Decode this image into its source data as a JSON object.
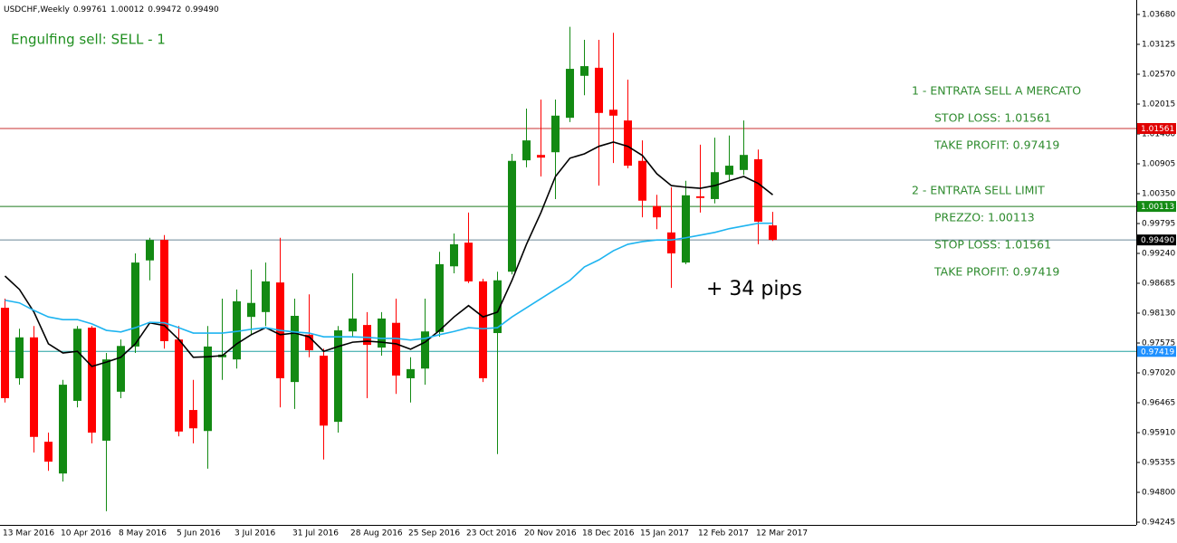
{
  "header": {
    "symbol": "USDCHF,Weekly",
    "ohlc": [
      "0.99761",
      "1.00012",
      "0.99472",
      "0.99490"
    ]
  },
  "annotations": {
    "signal": "Engulfing sell: SELL - 1",
    "lines": [
      "1 - ENTRATA SELL A MERCATO",
      "STOP LOSS: 1.01561",
      "TAKE PROFIT: 0.97419",
      "2 - ENTRATA SELL LIMIT",
      "PREZZO: 1.00113",
      "STOP LOSS: 1.01561",
      "TAKE PROFIT: 0.97419"
    ],
    "result": "+ 34 pips"
  },
  "chart_data": {
    "type": "candlestick",
    "categories": [
      "13 Mar 2016",
      null,
      null,
      null,
      "10 Apr 2016",
      null,
      null,
      null,
      "8 May 2016",
      null,
      null,
      null,
      "5 Jun 2016",
      null,
      null,
      null,
      "3 Jul 2016",
      null,
      null,
      null,
      "31 Jul 2016",
      null,
      null,
      null,
      "28 Aug 2016",
      null,
      null,
      null,
      "25 Sep 2016",
      null,
      null,
      null,
      "23 Oct 2016",
      null,
      null,
      null,
      "20 Nov 2016",
      null,
      null,
      null,
      "18 Dec 2016",
      null,
      null,
      null,
      "15 Jan 2017",
      null,
      null,
      null,
      "12 Feb 2017",
      null,
      null,
      null,
      "12 Mar 2017",
      null
    ],
    "open": [
      0.9823,
      0.9692,
      0.9768,
      0.9574,
      0.9515,
      0.965,
      0.9786,
      0.9576,
      0.9667,
      0.9751,
      0.9911,
      0.9949,
      0.9764,
      0.9633,
      0.9594,
      0.9731,
      0.9727,
      0.9806,
      0.9815,
      0.987,
      0.9685,
      0.9773,
      0.9734,
      0.9611,
      0.9779,
      0.9791,
      0.9749,
      0.9795,
      0.9692,
      0.971,
      0.9778,
      0.99,
      0.9944,
      0.9872,
      0.9776,
      0.989,
      1.0097,
      1.0107,
      1.0112,
      1.0176,
      1.0254,
      1.0269,
      1.0191,
      1.0171,
      1.0096,
      1.0012,
      0.9963,
      0.9907,
      1.003,
      1.0025,
      1.007,
      1.0079,
      1.0099,
      0.99761
    ],
    "high": [
      0.984,
      0.9784,
      0.9789,
      0.9591,
      0.9689,
      0.9789,
      0.9789,
      0.9739,
      0.9764,
      0.9924,
      0.9953,
      0.9958,
      0.9789,
      0.9689,
      0.9789,
      0.984,
      0.9857,
      0.9894,
      0.9907,
      0.9953,
      0.984,
      0.9848,
      0.9747,
      0.9789,
      0.9887,
      0.9815,
      0.9815,
      0.984,
      0.9731,
      0.984,
      0.9927,
      0.9961,
      1.0,
      0.9877,
      0.989,
      1.0109,
      1.0193,
      1.021,
      1.021,
      1.0345,
      1.0321,
      1.0321,
      1.0334,
      1.0247,
      1.0134,
      1.0033,
      1.0047,
      1.0059,
      1.0126,
      1.0139,
      1.0143,
      1.0171,
      1.0117,
      1.00012
    ],
    "low": [
      0.9647,
      0.968,
      0.9554,
      0.952,
      0.95,
      0.9638,
      0.9571,
      0.9445,
      0.9655,
      0.9739,
      0.9874,
      0.9747,
      0.9584,
      0.9571,
      0.9524,
      0.9689,
      0.971,
      0.9773,
      0.9789,
      0.9638,
      0.9635,
      0.9731,
      0.9541,
      0.9591,
      0.9769,
      0.9655,
      0.9734,
      0.9663,
      0.9647,
      0.968,
      0.9769,
      0.9887,
      0.9869,
      0.9685,
      0.9551,
      0.9885,
      1.0084,
      1.0067,
      1.0025,
      1.0168,
      1.0218,
      1.005,
      1.0092,
      1.0082,
      0.9991,
      0.9969,
      0.986,
      0.9904,
      1.0,
      1.0017,
      1.0059,
      1.007,
      0.9941,
      0.99472
    ],
    "close": [
      0.9655,
      0.9768,
      0.9583,
      0.9537,
      0.968,
      0.9784,
      0.9591,
      0.9727,
      0.9752,
      0.9907,
      0.9949,
      0.9761,
      0.9593,
      0.9599,
      0.9751,
      0.9736,
      0.9835,
      0.9832,
      0.9872,
      0.9692,
      0.9808,
      0.9744,
      0.9604,
      0.9781,
      0.9803,
      0.9754,
      0.9803,
      0.9697,
      0.9709,
      0.9779,
      0.9904,
      0.9941,
      0.9872,
      0.9692,
      0.9874,
      1.0096,
      1.0134,
      1.0102,
      1.018,
      1.0267,
      1.0272,
      1.0185,
      1.018,
      1.0087,
      1.0022,
      0.9991,
      0.9924,
      1.0032,
      1.0027,
      1.0075,
      1.0087,
      1.0107,
      0.9983,
      0.9949
    ],
    "up_color": "#138a13",
    "down_color": "#ff0000",
    "lines": [
      {
        "color": "#000000",
        "values": [
          0.9882,
          0.9857,
          0.9815,
          0.9756,
          0.9739,
          0.9742,
          0.9714,
          0.9722,
          0.9731,
          0.9756,
          0.9795,
          0.979,
          0.9764,
          0.9731,
          0.9732,
          0.9734,
          0.9756,
          0.9773,
          0.9786,
          0.9773,
          0.9776,
          0.9769,
          0.9742,
          0.9751,
          0.9759,
          0.9761,
          0.9759,
          0.9756,
          0.9746,
          0.9759,
          0.9781,
          0.9806,
          0.9827,
          0.9806,
          0.9815,
          0.9874,
          0.9941,
          1.0,
          1.0067,
          1.0101,
          1.0109,
          1.0123,
          1.0131,
          1.0123,
          1.0106,
          1.0072,
          1.005,
          1.0047,
          1.0045,
          1.005,
          1.0059,
          1.0067,
          1.0054,
          1.0033
        ]
      },
      {
        "color": "#1eb4f0",
        "values": [
          0.9837,
          0.9832,
          0.9818,
          0.9806,
          0.9801,
          0.9801,
          0.9793,
          0.9781,
          0.9778,
          0.9786,
          0.9796,
          0.9795,
          0.9786,
          0.9776,
          0.9776,
          0.9776,
          0.9779,
          0.9783,
          0.9786,
          0.9781,
          0.9778,
          0.9776,
          0.9769,
          0.9769,
          0.9769,
          0.9768,
          0.9766,
          0.9766,
          0.9763,
          0.9766,
          0.9773,
          0.9779,
          0.9786,
          0.9784,
          0.9786,
          0.9806,
          0.9823,
          0.984,
          0.9857,
          0.9874,
          0.9899,
          0.9912,
          0.9929,
          0.9941,
          0.9946,
          0.9949,
          0.9949,
          0.9953,
          0.9958,
          0.9963,
          0.997,
          0.9975,
          0.998,
          0.998
        ]
      }
    ],
    "levels": [
      {
        "value": 1.01561,
        "label": "1.01561",
        "color": "#c83232",
        "label_bg": "#e00000"
      },
      {
        "value": 1.00113,
        "label": "1.00113",
        "color": "#1f7a1f",
        "label_bg": "#138a13"
      },
      {
        "value": 0.9949,
        "label": "0.99490",
        "color": "#6a8896",
        "label_bg": "#000000"
      },
      {
        "value": 0.97419,
        "label": "0.97419",
        "color": "#20a0a0",
        "label_bg": "#1e90ff"
      }
    ],
    "ylim": [
      0.94195,
      1.03949
    ],
    "yticks": [
      {
        "value": 1.0368,
        "label": "1.03680"
      },
      1.03125,
      {
        "value": 1.0257,
        "label": "1.02570"
      },
      1.02015,
      {
        "value": 1.0146,
        "label": "1.01460"
      },
      1.00905,
      {
        "value": 1.0035,
        "label": "1.00350"
      },
      0.99795,
      {
        "value": 0.9924,
        "label": "0.99240"
      },
      0.98685,
      {
        "value": 0.9813,
        "label": "0.98130"
      },
      0.97575,
      {
        "value": 0.9702,
        "label": "0.97020"
      },
      0.96465,
      {
        "value": 0.9591,
        "label": "0.95910"
      },
      0.95355,
      {
        "value": 0.948,
        "label": "0.94800"
      },
      0.94245
    ],
    "grid": false
  }
}
